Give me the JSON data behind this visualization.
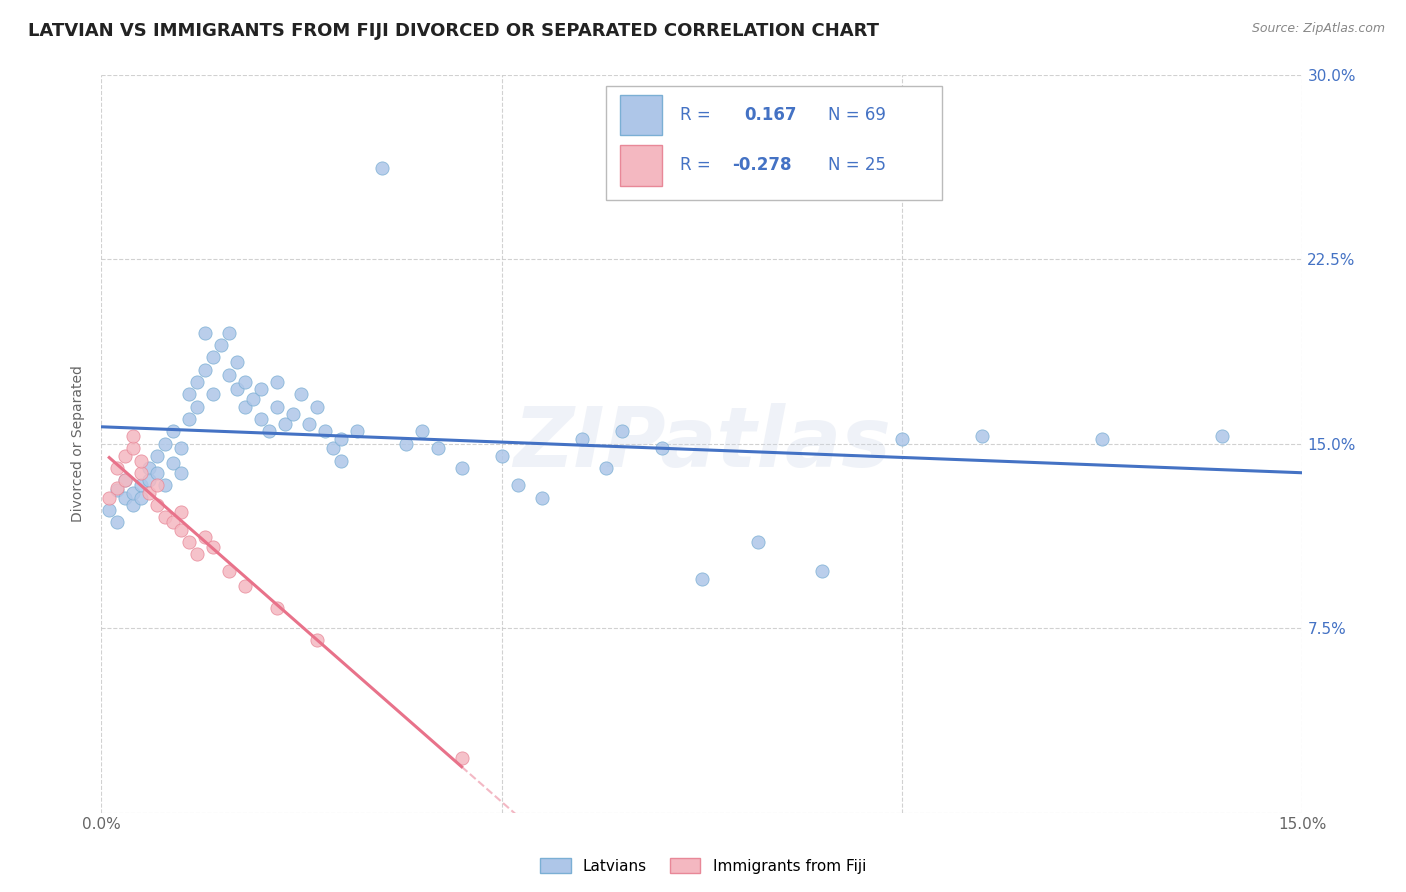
{
  "title": "LATVIAN VS IMMIGRANTS FROM FIJI DIVORCED OR SEPARATED CORRELATION CHART",
  "source": "Source: ZipAtlas.com",
  "ylabel": "Divorced or Separated",
  "watermark": "ZIPatlas",
  "legend_entries": [
    {
      "label": "Latvians",
      "R": 0.167,
      "N": 69
    },
    {
      "label": "Immigrants from Fiji",
      "R": -0.278,
      "N": 25
    }
  ],
  "latvian_scatter": [
    [
      0.001,
      0.123
    ],
    [
      0.002,
      0.118
    ],
    [
      0.002,
      0.131
    ],
    [
      0.003,
      0.128
    ],
    [
      0.003,
      0.135
    ],
    [
      0.004,
      0.125
    ],
    [
      0.004,
      0.13
    ],
    [
      0.005,
      0.133
    ],
    [
      0.005,
      0.128
    ],
    [
      0.006,
      0.14
    ],
    [
      0.006,
      0.135
    ],
    [
      0.007,
      0.138
    ],
    [
      0.007,
      0.145
    ],
    [
      0.008,
      0.133
    ],
    [
      0.008,
      0.15
    ],
    [
      0.009,
      0.142
    ],
    [
      0.009,
      0.155
    ],
    [
      0.01,
      0.148
    ],
    [
      0.01,
      0.138
    ],
    [
      0.011,
      0.16
    ],
    [
      0.011,
      0.17
    ],
    [
      0.012,
      0.175
    ],
    [
      0.012,
      0.165
    ],
    [
      0.013,
      0.18
    ],
    [
      0.013,
      0.195
    ],
    [
      0.014,
      0.17
    ],
    [
      0.014,
      0.185
    ],
    [
      0.015,
      0.19
    ],
    [
      0.016,
      0.178
    ],
    [
      0.016,
      0.195
    ],
    [
      0.017,
      0.172
    ],
    [
      0.017,
      0.183
    ],
    [
      0.018,
      0.165
    ],
    [
      0.018,
      0.175
    ],
    [
      0.019,
      0.168
    ],
    [
      0.02,
      0.172
    ],
    [
      0.02,
      0.16
    ],
    [
      0.021,
      0.155
    ],
    [
      0.022,
      0.175
    ],
    [
      0.022,
      0.165
    ],
    [
      0.023,
      0.158
    ],
    [
      0.024,
      0.162
    ],
    [
      0.025,
      0.17
    ],
    [
      0.026,
      0.158
    ],
    [
      0.027,
      0.165
    ],
    [
      0.028,
      0.155
    ],
    [
      0.029,
      0.148
    ],
    [
      0.03,
      0.152
    ],
    [
      0.03,
      0.143
    ],
    [
      0.032,
      0.155
    ],
    [
      0.035,
      0.262
    ],
    [
      0.038,
      0.15
    ],
    [
      0.04,
      0.155
    ],
    [
      0.042,
      0.148
    ],
    [
      0.045,
      0.14
    ],
    [
      0.05,
      0.145
    ],
    [
      0.052,
      0.133
    ],
    [
      0.055,
      0.128
    ],
    [
      0.06,
      0.152
    ],
    [
      0.063,
      0.14
    ],
    [
      0.065,
      0.155
    ],
    [
      0.07,
      0.148
    ],
    [
      0.075,
      0.095
    ],
    [
      0.082,
      0.11
    ],
    [
      0.09,
      0.098
    ],
    [
      0.1,
      0.152
    ],
    [
      0.11,
      0.153
    ],
    [
      0.125,
      0.152
    ],
    [
      0.14,
      0.153
    ]
  ],
  "fiji_scatter": [
    [
      0.001,
      0.128
    ],
    [
      0.002,
      0.132
    ],
    [
      0.002,
      0.14
    ],
    [
      0.003,
      0.145
    ],
    [
      0.003,
      0.135
    ],
    [
      0.004,
      0.148
    ],
    [
      0.004,
      0.153
    ],
    [
      0.005,
      0.138
    ],
    [
      0.005,
      0.143
    ],
    [
      0.006,
      0.13
    ],
    [
      0.007,
      0.133
    ],
    [
      0.007,
      0.125
    ],
    [
      0.008,
      0.12
    ],
    [
      0.009,
      0.118
    ],
    [
      0.01,
      0.122
    ],
    [
      0.01,
      0.115
    ],
    [
      0.011,
      0.11
    ],
    [
      0.012,
      0.105
    ],
    [
      0.013,
      0.112
    ],
    [
      0.014,
      0.108
    ],
    [
      0.016,
      0.098
    ],
    [
      0.018,
      0.092
    ],
    [
      0.022,
      0.083
    ],
    [
      0.027,
      0.07
    ],
    [
      0.045,
      0.022
    ]
  ],
  "latvian_line_color": "#4472c4",
  "fiji_line_color": "#e8728a",
  "scatter_latvian_color": "#aec6e8",
  "scatter_fiji_color": "#f4b8c1",
  "scatter_edge_latvian": "#7bafd4",
  "scatter_edge_fiji": "#e88898",
  "xmin": 0.0,
  "xmax": 0.15,
  "ymin": 0.0,
  "ymax": 0.3,
  "xticks": [
    0.0,
    0.05,
    0.1,
    0.15
  ],
  "xtick_labels": [
    "0.0%",
    "",
    "",
    "15.0%"
  ],
  "yticks": [
    0.0,
    0.075,
    0.15,
    0.225,
    0.3
  ],
  "ytick_labels_right": [
    "",
    "7.5%",
    "15.0%",
    "22.5%",
    "30.0%"
  ],
  "grid_color": "#cccccc",
  "background_color": "#ffffff",
  "title_fontsize": 13,
  "label_fontsize": 10,
  "tick_fontsize": 11
}
